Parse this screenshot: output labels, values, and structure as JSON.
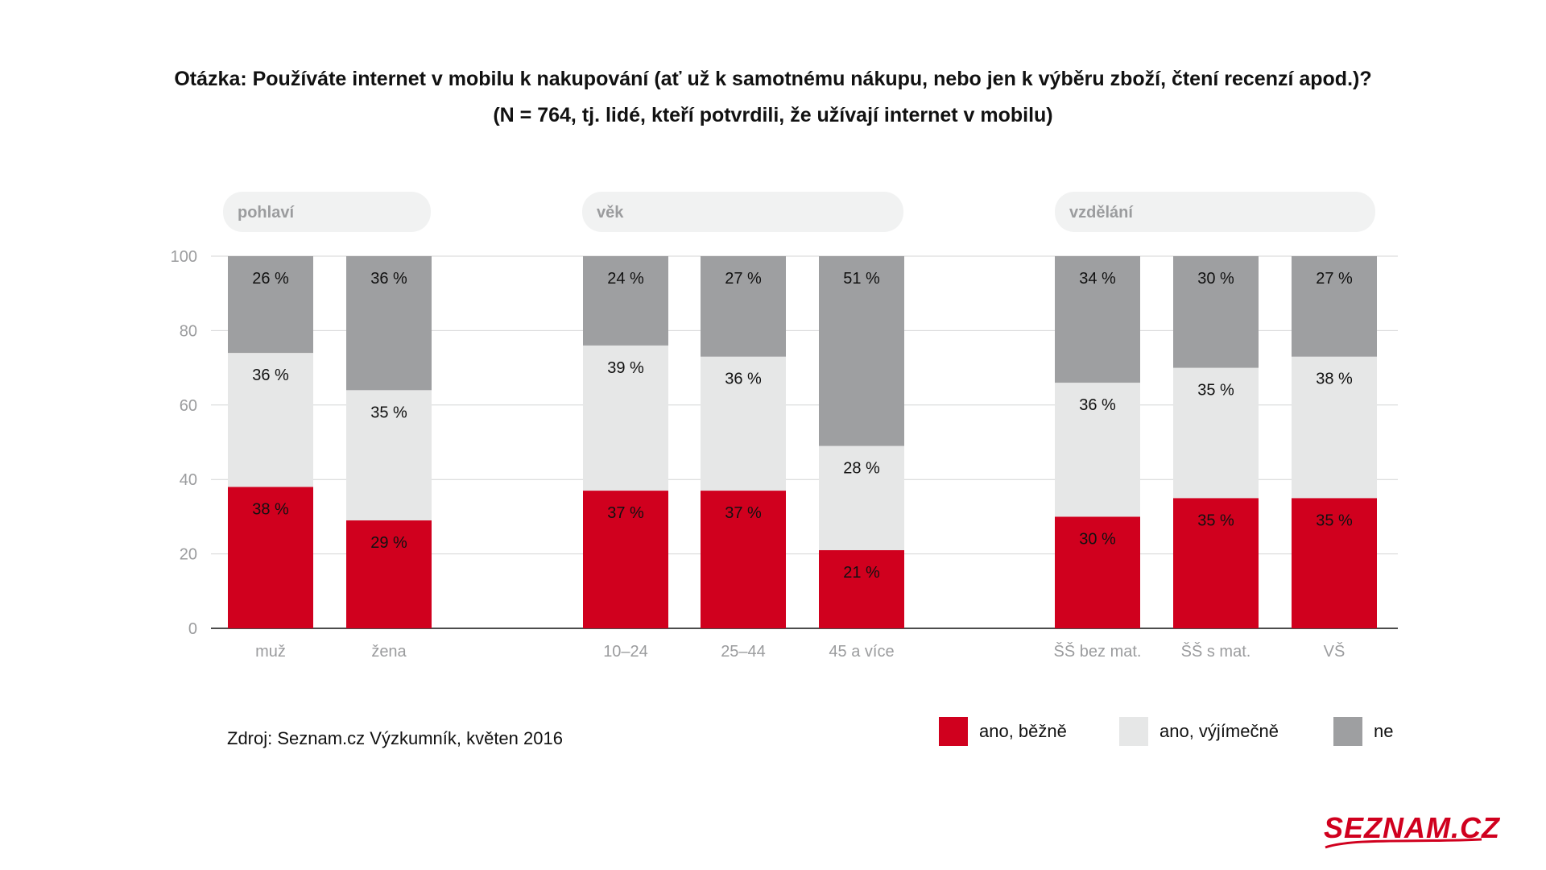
{
  "title": {
    "line1": "Otázka: Používáte internet v mobilu k nakupování (ať už k samotnému nákupu, nebo jen k výběru zboží, čtení recenzí apod.)?",
    "line2": "(N = 764, tj. lidé, kteří potvrdili, že užívají internet v mobilu)"
  },
  "chart_data": {
    "type": "bar",
    "stacked": true,
    "ylim": [
      0,
      100
    ],
    "yticks": [
      "0",
      "20",
      "40",
      "60",
      "80",
      "100"
    ],
    "grid": true,
    "legend_position": "bottom-right",
    "groups": [
      {
        "label": "pohlaví",
        "categories": [
          "muž",
          "žena"
        ]
      },
      {
        "label": "věk",
        "categories": [
          "10–24",
          "25–44",
          "45 a více"
        ]
      },
      {
        "label": "vzdělání",
        "categories": [
          "ŠŠ bez mat.",
          "ŠŠ s mat.",
          "VŠ"
        ]
      }
    ],
    "categories": [
      "muž",
      "žena",
      "10–24",
      "25–44",
      "45 a více",
      "ŠŠ bez mat.",
      "ŠŠ s mat.",
      "VŠ"
    ],
    "series": [
      {
        "name": "ano, běžně",
        "color": "#d0001e",
        "values": [
          38,
          29,
          37,
          37,
          21,
          30,
          35,
          35
        ],
        "labels": [
          "38 %",
          "29 %",
          "37 %",
          "37 %",
          "21 %",
          "30 %",
          "35 %",
          "35 %"
        ]
      },
      {
        "name": "ano, výjímečně",
        "color": "#e6e7e7",
        "values": [
          36,
          35,
          39,
          36,
          28,
          36,
          35,
          38
        ],
        "labels": [
          "36 %",
          "35 %",
          "39 %",
          "36 %",
          "28 %",
          "36 %",
          "35 %",
          "38 %"
        ]
      },
      {
        "name": "ne",
        "color": "#9e9fa1",
        "values": [
          26,
          36,
          24,
          27,
          51,
          34,
          30,
          27
        ],
        "labels": [
          "26 %",
          "36 %",
          "24 %",
          "27 %",
          "51 %",
          "34 %",
          "30 %",
          "27 %"
        ]
      }
    ]
  },
  "source": "Zdroj: Seznam.cz Výzkumník, květen 2016",
  "logo": {
    "text": "SEZNAM.CZ",
    "color": "#d0001e"
  }
}
